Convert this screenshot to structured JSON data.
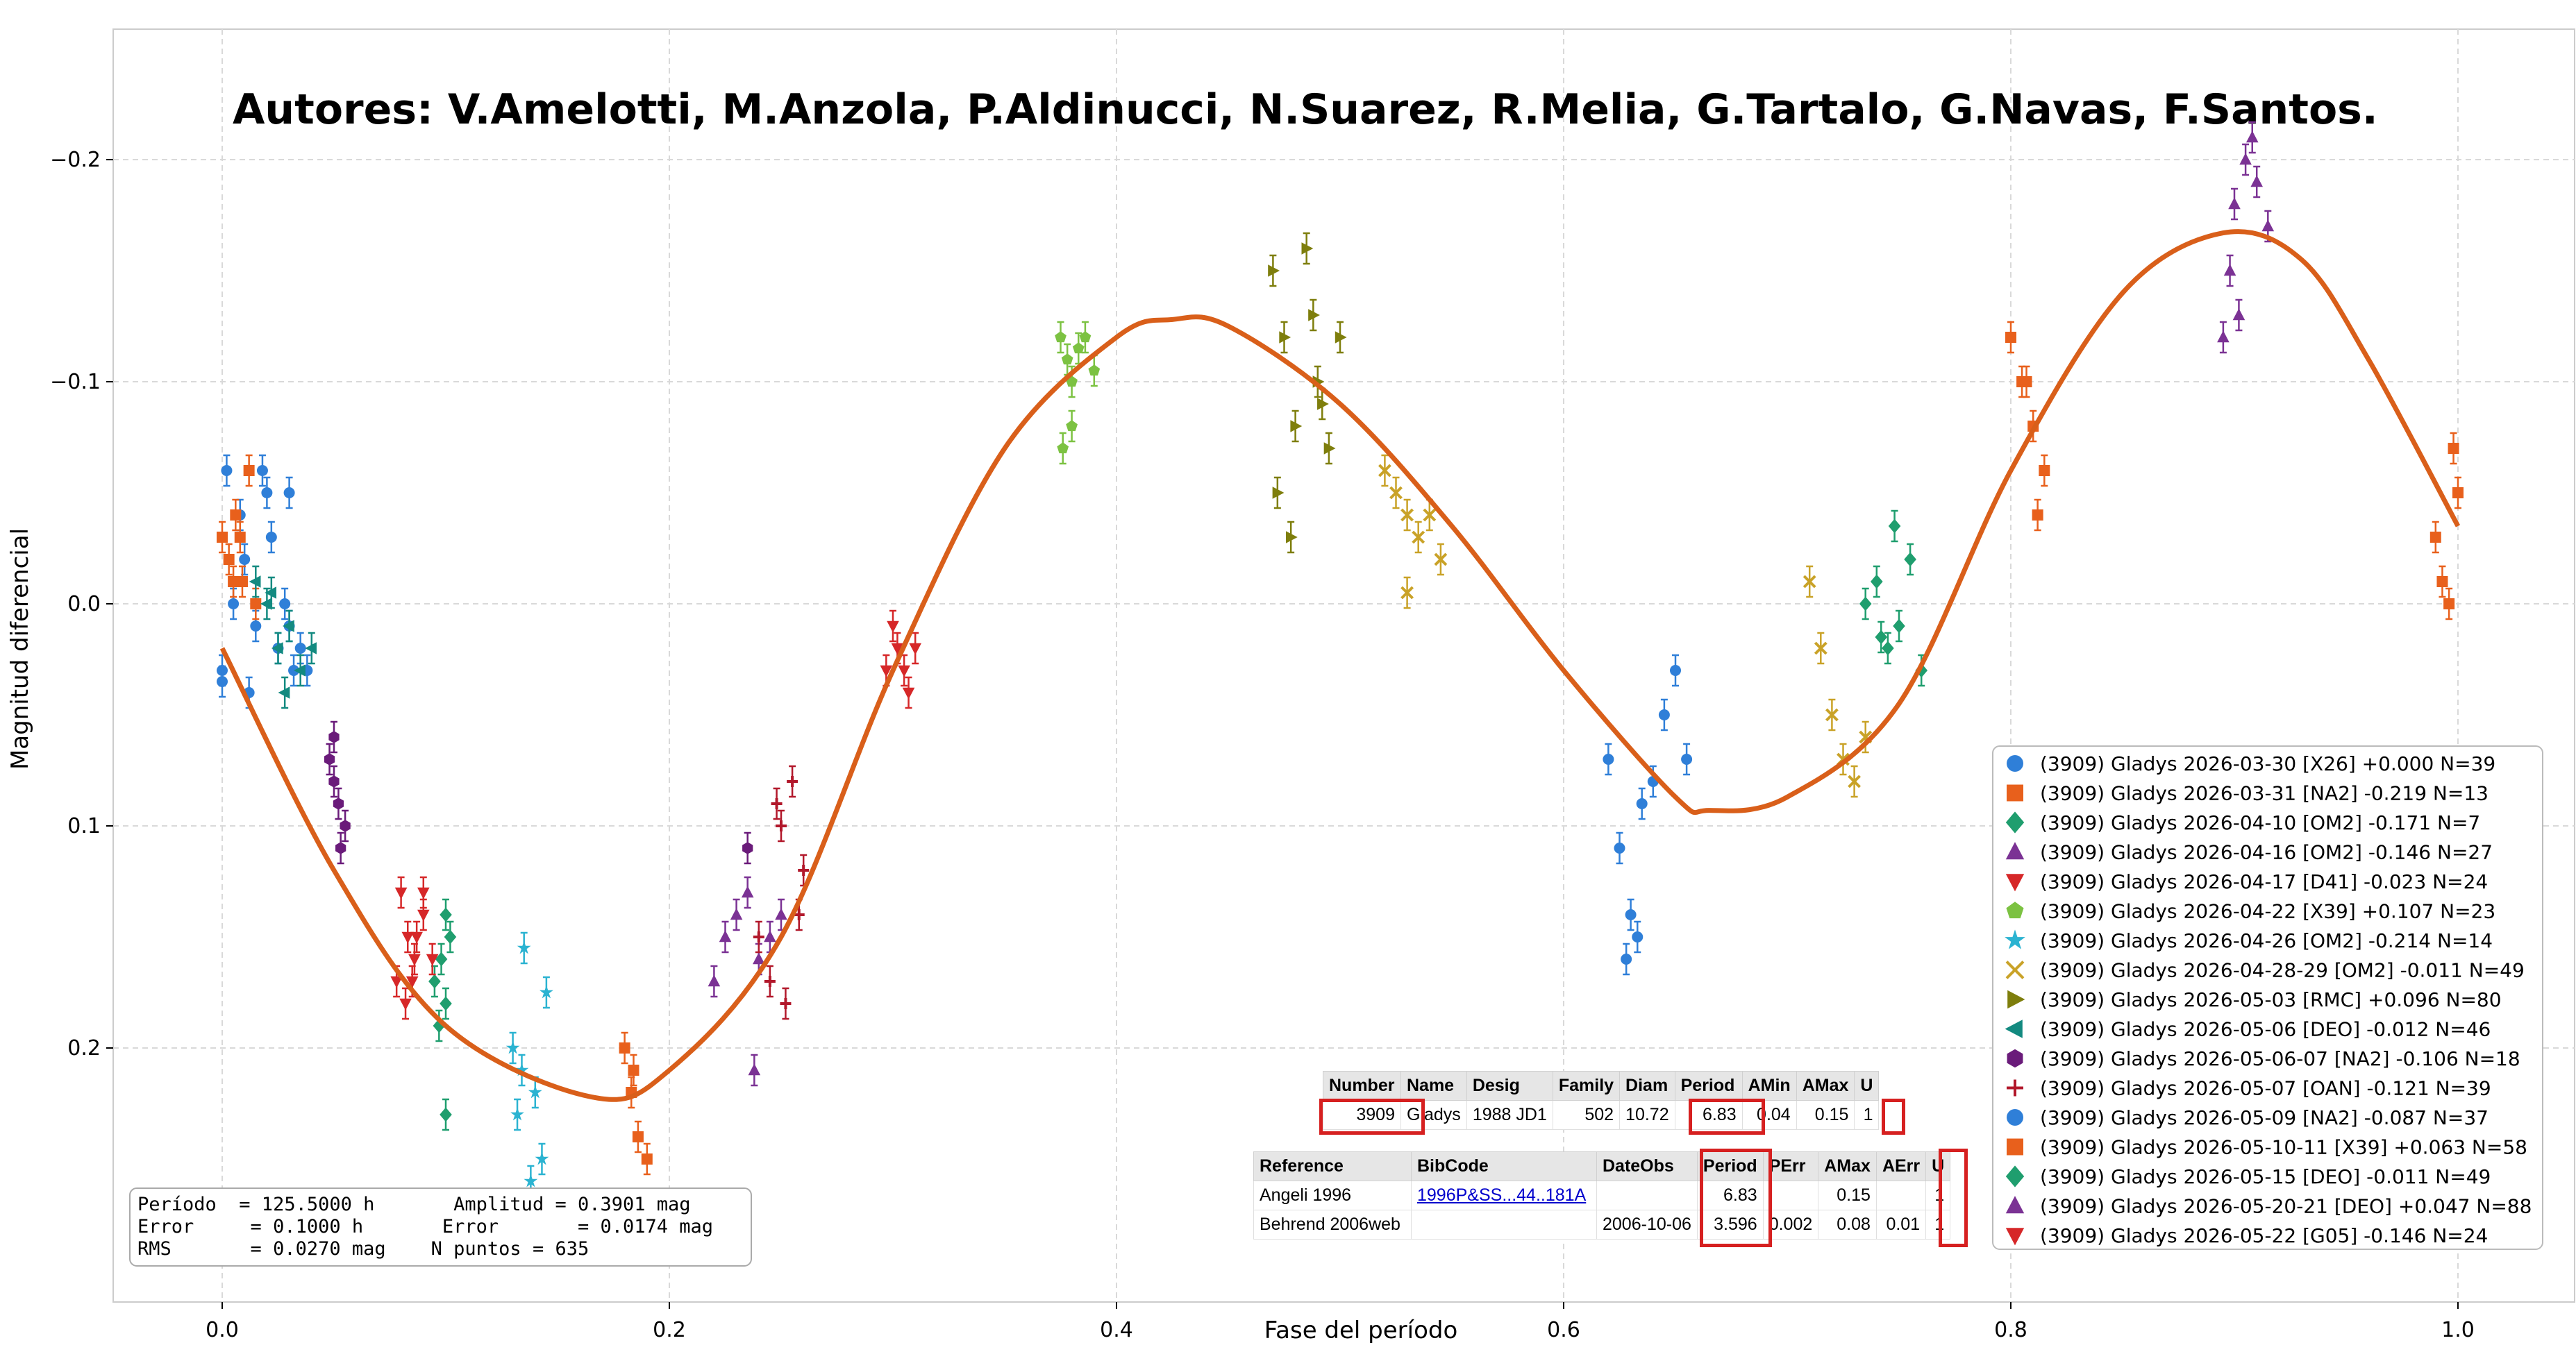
{
  "chart_data": {
    "type": "scatter",
    "title": "Autores: V.Amelotti, M.Anzola, P.Aldinucci, N.Suarez, R.Melia, G.Tartalo, G.Navas, F.Santos.",
    "xlabel": "Fase del período",
    "ylabel": "Magnitud diferencial",
    "xlim": [
      -0.05,
      1.05
    ],
    "ylim": [
      0.27,
      -0.26
    ],
    "y_inverted": true,
    "grid": true,
    "legend_placement": "lower-right",
    "x_ticks": [
      0.0,
      0.2,
      0.4,
      0.6,
      0.8,
      1.0
    ],
    "x_tick_labels": [
      "0.0",
      "0.2",
      "0.4",
      "0.6",
      "0.8",
      "1.0"
    ],
    "y_ticks": [
      -0.2,
      -0.1,
      0.0,
      0.1,
      0.2
    ],
    "y_tick_labels": [
      "−0.2",
      "−0.1",
      "0.0",
      "0.1",
      "0.2"
    ],
    "fit_curve": {
      "color": "#d95f1a",
      "points": [
        [
          0.0,
          0.02
        ],
        [
          0.05,
          0.12
        ],
        [
          0.1,
          0.19
        ],
        [
          0.165,
          0.222
        ],
        [
          0.2,
          0.21
        ],
        [
          0.25,
          0.15
        ],
        [
          0.3,
          0.03
        ],
        [
          0.35,
          -0.07
        ],
        [
          0.4,
          -0.12
        ],
        [
          0.425,
          -0.128
        ],
        [
          0.45,
          -0.125
        ],
        [
          0.5,
          -0.09
        ],
        [
          0.55,
          -0.035
        ],
        [
          0.6,
          0.03
        ],
        [
          0.65,
          0.087
        ],
        [
          0.665,
          0.093
        ],
        [
          0.7,
          0.087
        ],
        [
          0.75,
          0.045
        ],
        [
          0.8,
          -0.06
        ],
        [
          0.85,
          -0.14
        ],
        [
          0.895,
          -0.167
        ],
        [
          0.93,
          -0.155
        ],
        [
          0.96,
          -0.11
        ],
        [
          1.0,
          -0.035
        ]
      ]
    },
    "series": [
      {
        "name": "(3909) Gladys 2026-03-30 [X26] +0.000 N=39",
        "color": "#2f7fd8",
        "marker": "circle",
        "points": [
          [
            0.0,
            0.03
          ],
          [
            0.002,
            -0.06
          ],
          [
            0.005,
            0.0
          ],
          [
            0.008,
            -0.04
          ],
          [
            0.01,
            -0.02
          ],
          [
            0.015,
            0.01
          ],
          [
            0.018,
            -0.06
          ],
          [
            0.02,
            -0.05
          ],
          [
            0.022,
            -0.03
          ],
          [
            0.025,
            0.02
          ],
          [
            0.028,
            0.0
          ],
          [
            0.03,
            -0.05
          ],
          [
            0.032,
            0.03
          ],
          [
            0.035,
            0.02
          ],
          [
            0.038,
            0.03
          ],
          [
            0.0,
            0.035
          ],
          [
            0.012,
            0.04
          ],
          [
            0.03,
            0.01
          ]
        ]
      },
      {
        "name": "(3909) Gladys 2026-03-31 [NA2] -0.219 N=13",
        "color": "#e8601c",
        "marker": "square",
        "points": [
          [
            0.0,
            -0.03
          ],
          [
            0.003,
            -0.02
          ],
          [
            0.006,
            -0.04
          ],
          [
            0.009,
            -0.01
          ],
          [
            0.012,
            -0.06
          ],
          [
            0.015,
            0.0
          ],
          [
            0.005,
            -0.01
          ],
          [
            0.008,
            -0.03
          ]
        ]
      },
      {
        "name": "(3909) Gladys 2026-04-10 [OM2] -0.171 N=7",
        "color": "#1f9e6e",
        "marker": "diamond",
        "points": [
          [
            0.1,
            0.14
          ],
          [
            0.102,
            0.15
          ],
          [
            0.098,
            0.16
          ],
          [
            0.1,
            0.18
          ],
          [
            0.097,
            0.19
          ],
          [
            0.1,
            0.23
          ],
          [
            0.095,
            0.17
          ]
        ]
      },
      {
        "name": "(3909) Gladys 2026-04-16 [OM2] -0.146 N=27",
        "color": "#7b3294",
        "marker": "triangle-up",
        "points": [
          [
            0.22,
            0.17
          ],
          [
            0.225,
            0.15
          ],
          [
            0.23,
            0.14
          ],
          [
            0.235,
            0.13
          ],
          [
            0.24,
            0.16
          ],
          [
            0.245,
            0.15
          ],
          [
            0.25,
            0.14
          ],
          [
            0.238,
            0.21
          ]
        ]
      },
      {
        "name": "(3909) Gladys 2026-04-17 [D41] -0.023 N=24",
        "color": "#d62728",
        "marker": "triangle-down",
        "points": [
          [
            0.08,
            0.13
          ],
          [
            0.083,
            0.15
          ],
          [
            0.086,
            0.16
          ],
          [
            0.09,
            0.14
          ],
          [
            0.085,
            0.17
          ],
          [
            0.3,
            0.01
          ],
          [
            0.302,
            0.02
          ],
          [
            0.305,
            0.03
          ],
          [
            0.31,
            0.02
          ],
          [
            0.307,
            0.04
          ],
          [
            0.297,
            0.03
          ]
        ]
      },
      {
        "name": "(3909) Gladys 2026-04-22 [X39] +0.107 N=23",
        "color": "#7cc242",
        "marker": "pentagon",
        "points": [
          [
            0.375,
            -0.12
          ],
          [
            0.378,
            -0.11
          ],
          [
            0.38,
            -0.1
          ],
          [
            0.383,
            -0.115
          ],
          [
            0.386,
            -0.12
          ],
          [
            0.39,
            -0.105
          ],
          [
            0.376,
            -0.07
          ],
          [
            0.38,
            -0.08
          ]
        ]
      },
      {
        "name": "(3909) Gladys 2026-04-26 [OM2] -0.214 N=14",
        "color": "#2bb3d1",
        "marker": "star",
        "points": [
          [
            0.13,
            0.2
          ],
          [
            0.132,
            0.23
          ],
          [
            0.135,
            0.155
          ],
          [
            0.138,
            0.26
          ],
          [
            0.14,
            0.22
          ],
          [
            0.143,
            0.25
          ],
          [
            0.145,
            0.175
          ],
          [
            0.134,
            0.21
          ]
        ]
      },
      {
        "name": "(3909) Gladys 2026-04-28-29 [OM2] -0.011 N=49",
        "color": "#c9a227",
        "marker": "x",
        "points": [
          [
            0.52,
            -0.06
          ],
          [
            0.525,
            -0.05
          ],
          [
            0.53,
            -0.04
          ],
          [
            0.535,
            -0.03
          ],
          [
            0.54,
            -0.04
          ],
          [
            0.545,
            -0.02
          ],
          [
            0.53,
            -0.005
          ],
          [
            0.71,
            -0.01
          ],
          [
            0.715,
            0.02
          ],
          [
            0.72,
            0.05
          ],
          [
            0.725,
            0.07
          ],
          [
            0.73,
            0.08
          ],
          [
            0.735,
            0.06
          ]
        ]
      },
      {
        "name": "(3909) Gladys 2026-05-03 [RMC] +0.096 N=80",
        "color": "#7e7e0c",
        "marker": "triangle-right",
        "points": [
          [
            0.47,
            -0.15
          ],
          [
            0.475,
            -0.12
          ],
          [
            0.48,
            -0.08
          ],
          [
            0.485,
            -0.16
          ],
          [
            0.49,
            -0.1
          ],
          [
            0.495,
            -0.07
          ],
          [
            0.5,
            -0.12
          ],
          [
            0.472,
            -0.05
          ],
          [
            0.478,
            -0.03
          ],
          [
            0.488,
            -0.13
          ],
          [
            0.492,
            -0.09
          ]
        ]
      },
      {
        "name": "(3909) Gladys 2026-05-06 [DEO] -0.012 N=46",
        "color": "#138a80",
        "marker": "triangle-left",
        "points": [
          [
            0.015,
            -0.01
          ],
          [
            0.02,
            0.0
          ],
          [
            0.025,
            0.02
          ],
          [
            0.03,
            0.01
          ],
          [
            0.035,
            0.03
          ],
          [
            0.04,
            0.02
          ],
          [
            0.022,
            -0.005
          ],
          [
            0.028,
            0.04
          ]
        ]
      },
      {
        "name": "(3909) Gladys 2026-05-06-07 [NA2] -0.106 N=18",
        "color": "#6a1b7a",
        "marker": "hexagon",
        "points": [
          [
            0.048,
            0.07
          ],
          [
            0.05,
            0.08
          ],
          [
            0.052,
            0.09
          ],
          [
            0.055,
            0.1
          ],
          [
            0.05,
            0.06
          ],
          [
            0.053,
            0.11
          ],
          [
            0.235,
            0.11
          ]
        ]
      },
      {
        "name": "(3909) Gladys 2026-05-07 [OAN] -0.121 N=39",
        "color": "#b2182b",
        "marker": "plus",
        "points": [
          [
            0.24,
            0.15
          ],
          [
            0.245,
            0.17
          ],
          [
            0.25,
            0.1
          ],
          [
            0.255,
            0.08
          ],
          [
            0.258,
            0.14
          ],
          [
            0.26,
            0.12
          ],
          [
            0.252,
            0.18
          ],
          [
            0.248,
            0.09
          ]
        ]
      },
      {
        "name": "(3909) Gladys 2026-05-09 [NA2] -0.087 N=37",
        "color": "#2f7fd8",
        "marker": "circle",
        "points": [
          [
            0.62,
            0.07
          ],
          [
            0.625,
            0.11
          ],
          [
            0.63,
            0.14
          ],
          [
            0.635,
            0.09
          ],
          [
            0.64,
            0.08
          ],
          [
            0.645,
            0.05
          ],
          [
            0.65,
            0.03
          ],
          [
            0.655,
            0.07
          ],
          [
            0.628,
            0.16
          ],
          [
            0.633,
            0.15
          ]
        ]
      },
      {
        "name": "(3909) Gladys 2026-05-10-11 [X39] +0.063 N=58",
        "color": "#e8601c",
        "marker": "square",
        "points": [
          [
            0.18,
            0.2
          ],
          [
            0.183,
            0.22
          ],
          [
            0.186,
            0.24
          ],
          [
            0.19,
            0.25
          ],
          [
            0.184,
            0.21
          ],
          [
            0.8,
            -0.12
          ],
          [
            0.805,
            -0.1
          ],
          [
            0.81,
            -0.08
          ],
          [
            0.815,
            -0.06
          ],
          [
            0.812,
            -0.04
          ],
          [
            0.807,
            -0.1
          ],
          [
            0.99,
            -0.03
          ],
          [
            0.993,
            -0.01
          ],
          [
            0.996,
            0.0
          ],
          [
            1.0,
            -0.05
          ],
          [
            0.998,
            -0.07
          ]
        ]
      },
      {
        "name": "(3909) Gladys 2026-05-15 [DEO] -0.011 N=49",
        "color": "#1f9e6e",
        "marker": "diamond",
        "points": [
          [
            0.735,
            0.0
          ],
          [
            0.74,
            -0.01
          ],
          [
            0.745,
            0.02
          ],
          [
            0.75,
            0.01
          ],
          [
            0.755,
            -0.02
          ],
          [
            0.76,
            0.03
          ],
          [
            0.748,
            -0.035
          ],
          [
            0.742,
            0.015
          ]
        ]
      },
      {
        "name": "(3909) Gladys 2026-05-20-21 [DEO] +0.047 N=88",
        "color": "#7b3294",
        "marker": "triangle-up",
        "points": [
          [
            0.9,
            -0.18
          ],
          [
            0.905,
            -0.2
          ],
          [
            0.91,
            -0.19
          ],
          [
            0.898,
            -0.15
          ],
          [
            0.902,
            -0.13
          ],
          [
            0.908,
            -0.21
          ],
          [
            0.895,
            -0.12
          ],
          [
            0.915,
            -0.17
          ]
        ]
      },
      {
        "name": "(3909) Gladys 2026-05-22 [G05] -0.146 N=24",
        "color": "#d62728",
        "marker": "triangle-down",
        "points": [
          [
            0.078,
            0.17
          ],
          [
            0.082,
            0.18
          ],
          [
            0.087,
            0.15
          ],
          [
            0.09,
            0.13
          ],
          [
            0.094,
            0.16
          ]
        ]
      }
    ],
    "stats_box": {
      "line1": "Período  = 125.5000 h       Amplitud = 0.3901 mag",
      "line2": "Error     = 0.1000 h       Error       = 0.0174 mag",
      "line3": "RMS       = 0.0270 mag    N puntos = 635"
    }
  },
  "asteroid_table": {
    "headers": [
      "Number",
      "Name",
      "Desig",
      "Family",
      "Diam",
      "Period",
      "AMin",
      "AMax",
      "U"
    ],
    "row": [
      "3909",
      "Gladys",
      "1988 JD1",
      "502",
      "10.72",
      "6.83",
      "0.04",
      "0.15",
      "1"
    ]
  },
  "reference_table": {
    "headers": [
      "Reference",
      "BibCode",
      "DateObs",
      "Period",
      "PErr",
      "AMax",
      "AErr",
      "U"
    ],
    "rows": [
      [
        "Angeli 1996",
        "1996P&SS...44..181A",
        "",
        "6.83",
        "",
        "0.15",
        "",
        "1"
      ],
      [
        "Behrend 2006web",
        "",
        "2006-10-06",
        "3.596",
        "0.002",
        "0.08",
        "0.01",
        "1"
      ]
    ]
  },
  "highlight_color": "#d62020"
}
